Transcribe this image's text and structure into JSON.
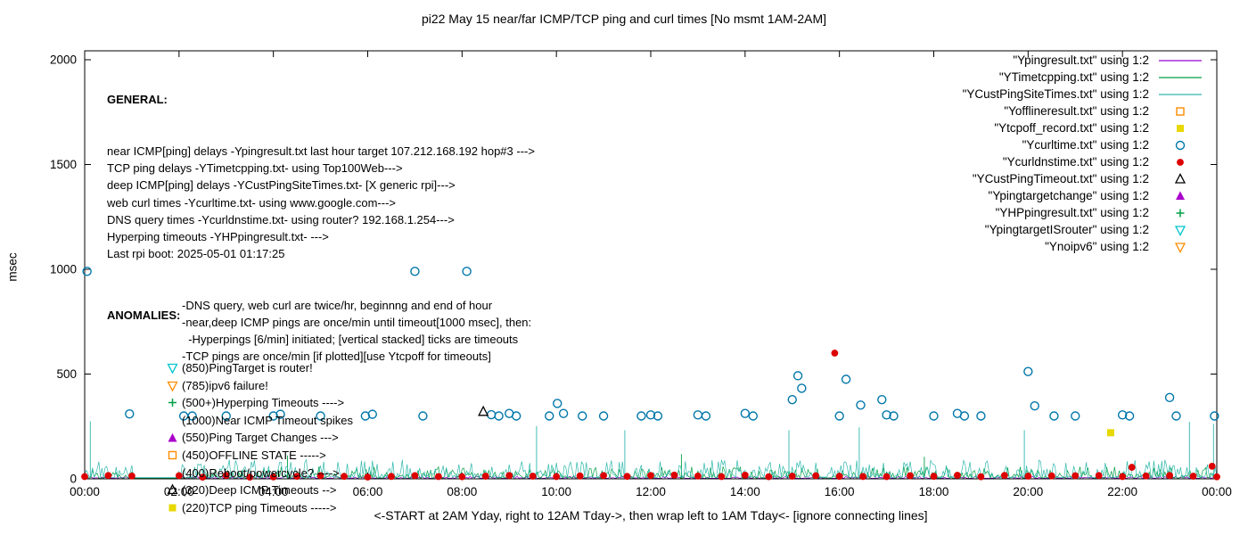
{
  "chart_data": {
    "type": "line+scatter",
    "title": "pi22 May 15  near/far ICMP/TCP ping and curl times [No msmt 1AM-2AM]",
    "xlabel": "<-START at 2AM Yday, right to 12AM Tday->, then wrap left to 1AM Tday<- [ignore connecting lines]",
    "ylabel": "msec",
    "ylim": [
      0,
      2000
    ],
    "y_ticks": [
      0,
      500,
      1000,
      1500,
      2000
    ],
    "x_tick_labels": [
      "00:00",
      "02:00",
      "04:00",
      "06:00",
      "08:00",
      "10:00",
      "12:00",
      "14:00",
      "16:00",
      "18:00",
      "20:00",
      "22:00",
      "00:00"
    ],
    "x_tick_hours": [
      0,
      2,
      4,
      6,
      8,
      10,
      12,
      14,
      16,
      18,
      20,
      22,
      24
    ],
    "x_range_hours": [
      0,
      24
    ],
    "grid": false,
    "legend_position": "top-right",
    "gap_hours": [
      1,
      2
    ],
    "series": [
      {
        "name": "Ypingresult",
        "style": "line",
        "color": "#9400d3",
        "noise": {
          "base": 3,
          "amp": 10,
          "seed": 11
        },
        "spikes": []
      },
      {
        "name": "YTimetcpping",
        "style": "line",
        "color": "#00a045",
        "noise": {
          "base": 4,
          "amp": 55,
          "seed": 22
        },
        "spikes": [
          [
            4.3,
            112
          ],
          [
            12.65,
            118
          ],
          [
            17.8,
            105
          ]
        ]
      },
      {
        "name": "YCustPingSiteTimes",
        "style": "line",
        "color": "#2fb8ac",
        "noise": {
          "base": 6,
          "amp": 85,
          "seed": 33
        },
        "spikes": [
          [
            0.12,
            275
          ],
          [
            9.58,
            252
          ],
          [
            11.45,
            232
          ],
          [
            14.93,
            232
          ],
          [
            16.42,
            246
          ],
          [
            19.92,
            232
          ],
          [
            23.42,
            272
          ],
          [
            23.93,
            262
          ]
        ]
      },
      {
        "name": "Yofflineresult",
        "style": "points",
        "marker": "square-open",
        "color": "#ff8c00",
        "points": []
      },
      {
        "name": "Ytcpoff_record",
        "style": "points",
        "marker": "square-filled",
        "color": "#e8d800",
        "points": [
          [
            21.75,
            220
          ]
        ]
      },
      {
        "name": "Ycurltime",
        "style": "points",
        "marker": "circle-open",
        "color": "#0077aa",
        "points": [
          [
            0.05,
            990
          ],
          [
            0.95,
            310
          ],
          [
            2.1,
            300
          ],
          [
            2.28,
            300
          ],
          [
            3.0,
            300
          ],
          [
            4.0,
            300
          ],
          [
            4.15,
            308
          ],
          [
            5.0,
            300
          ],
          [
            5.95,
            300
          ],
          [
            6.1,
            308
          ],
          [
            7.0,
            990
          ],
          [
            7.17,
            300
          ],
          [
            8.1,
            990
          ],
          [
            8.62,
            306
          ],
          [
            8.78,
            300
          ],
          [
            9.0,
            312
          ],
          [
            9.15,
            300
          ],
          [
            9.85,
            300
          ],
          [
            10.02,
            360
          ],
          [
            10.15,
            312
          ],
          [
            10.55,
            300
          ],
          [
            11.0,
            300
          ],
          [
            11.8,
            300
          ],
          [
            12.0,
            305
          ],
          [
            12.15,
            300
          ],
          [
            13.0,
            305
          ],
          [
            13.17,
            300
          ],
          [
            14.0,
            312
          ],
          [
            14.17,
            300
          ],
          [
            15.0,
            378
          ],
          [
            15.12,
            492
          ],
          [
            15.2,
            432
          ],
          [
            16.0,
            300
          ],
          [
            16.14,
            475
          ],
          [
            16.45,
            352
          ],
          [
            16.9,
            378
          ],
          [
            17.0,
            305
          ],
          [
            17.15,
            300
          ],
          [
            18.0,
            300
          ],
          [
            18.5,
            312
          ],
          [
            18.65,
            300
          ],
          [
            19.0,
            300
          ],
          [
            20.0,
            512
          ],
          [
            20.14,
            348
          ],
          [
            20.55,
            300
          ],
          [
            21.0,
            300
          ],
          [
            22.0,
            305
          ],
          [
            22.15,
            300
          ],
          [
            23.0,
            388
          ],
          [
            23.14,
            300
          ],
          [
            23.95,
            300
          ]
        ]
      },
      {
        "name": "Ycurldnstime",
        "style": "points",
        "marker": "circle-filled",
        "color": "#dd0000",
        "generate": {
          "from": 0,
          "to": 24,
          "step": 0.5,
          "value": 8,
          "jitter": 10
        },
        "points": [
          [
            15.9,
            600
          ],
          [
            22.2,
            55
          ],
          [
            23.9,
            60
          ]
        ]
      },
      {
        "name": "YCustPingTimeout",
        "style": "points",
        "marker": "triangle-up-open",
        "color": "#000000",
        "points": [
          [
            8.45,
            320
          ]
        ]
      },
      {
        "name": "Ypingtargetchange",
        "style": "points",
        "marker": "triangle-up-filled",
        "color": "#aa00cc",
        "points": []
      },
      {
        "name": "YHPpingresult",
        "style": "points",
        "marker": "plus",
        "color": "#00a045",
        "points": []
      },
      {
        "name": "YpingtargetISrouter",
        "style": "points",
        "marker": "triangle-down-open",
        "color": "#00c4cc",
        "points": []
      },
      {
        "name": "Ynoipv6",
        "style": "points",
        "marker": "triangle-down-open",
        "color": "#ff8c00",
        "points": []
      }
    ]
  },
  "legend": [
    {
      "label": "\"Ypingresult.txt\" using 1:2",
      "sample": "line",
      "color": "#9400d3"
    },
    {
      "label": "\"YTimetcpping.txt\" using 1:2",
      "sample": "line",
      "color": "#00a045"
    },
    {
      "label": "\"YCustPingSiteTimes.txt\" using 1:2",
      "sample": "line",
      "color": "#2fb8ac"
    },
    {
      "label": "\"Yofflineresult.txt\" using 1:2",
      "sample": "square-open",
      "color": "#ff8c00"
    },
    {
      "label": "\"Ytcpoff_record.txt\" using 1:2",
      "sample": "square-filled",
      "color": "#e8d800"
    },
    {
      "label": "\"Ycurltime.txt\" using 1:2",
      "sample": "circle-open",
      "color": "#0077aa"
    },
    {
      "label": "\"Ycurldnstime.txt\" using 1:2",
      "sample": "circle-filled",
      "color": "#dd0000"
    },
    {
      "label": "\"YCustPingTimeout.txt\" using 1:2",
      "sample": "triangle-up-open",
      "color": "#000000"
    },
    {
      "label": "\"Ypingtargetchange\" using 1:2",
      "sample": "triangle-up-filled",
      "color": "#aa00cc"
    },
    {
      "label": "\"YHPpingresult.txt\" using 1:2",
      "sample": "plus",
      "color": "#00a045"
    },
    {
      "label": "\"YpingtargetISrouter\" using 1:2",
      "sample": "triangle-down-open",
      "color": "#00c4cc"
    },
    {
      "label": "\"Ynoipv6\" using 1:2",
      "sample": "triangle-down-open",
      "color": "#ff8c00"
    }
  ],
  "general": {
    "heading": "GENERAL:",
    "lines": [
      "near ICMP[ping] delays -Ypingresult.txt last hour target 107.212.168.192 hop#3 --->",
      "TCP ping delays -YTimetcpping.txt- using Top100Web--->",
      "deep ICMP[ping] delays -YCustPingSiteTimes.txt- [X generic rpi]--->",
      "web curl times -Ycurltime.txt- using www.google.com--->",
      "DNS query times -Ycurldnstime.txt- using router? 192.168.1.254--->",
      "Hyperping timeouts -YHPpingresult.txt- --->",
      "Last rpi boot: 2025-05-01 01:17:25"
    ],
    "indented_lines": [
      "-DNS query, web curl are twice/hr, beginnng and end of hour",
      "-near,deep ICMP pings are once/min until timeout[1000 msec], then:",
      "  -Hyperpings [6/min] initiated; [vertical stacked] ticks are timeouts",
      "-TCP pings are once/min [if plotted][use Ytcpoff for timeouts]"
    ]
  },
  "anomalies": {
    "heading": "ANOMALIES:",
    "items": [
      {
        "marker": "triangle-down-open",
        "color": "#00c4cc",
        "label": "(850)PingTarget is router!"
      },
      {
        "marker": "triangle-down-open",
        "color": "#ff8c00",
        "label": "(785)ipv6 failure!"
      },
      {
        "marker": "plus",
        "color": "#00a045",
        "label": "(500+)Hyperping Timeouts ---->"
      },
      {
        "marker": "none",
        "color": "",
        "label": "(1000)Near ICMP Timeout spikes"
      },
      {
        "marker": "triangle-up-filled",
        "color": "#aa00cc",
        "label": "(550)Ping Target Changes --->"
      },
      {
        "marker": "square-open",
        "color": "#ff8c00",
        "label": "(450)OFFLINE STATE ----->"
      },
      {
        "marker": "none",
        "color": "",
        "label": "(400)Reboot/powercycle? ---->"
      },
      {
        "marker": "triangle-up-open",
        "color": "#000000",
        "label": "(320)Deep ICMP Timeouts -->"
      },
      {
        "marker": "square-filled",
        "color": "#e8d800",
        "label": "(220)TCP ping Timeouts ----->"
      }
    ]
  }
}
